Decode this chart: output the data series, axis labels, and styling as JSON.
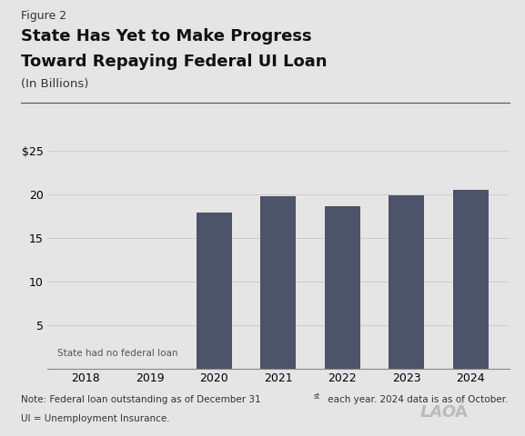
{
  "figure_label": "Figure 2",
  "title_line1": "State Has Yet to Make Progress",
  "title_line2": "Toward Repaying Federal UI Loan",
  "subtitle": "(In Billions)",
  "categories": [
    2018,
    2019,
    2020,
    2021,
    2022,
    2023,
    2024
  ],
  "values": [
    0,
    0,
    17.9,
    19.8,
    18.6,
    19.9,
    20.5
  ],
  "bar_color": "#4d5369",
  "ylim": [
    0,
    25
  ],
  "yticks": [
    0,
    5,
    10,
    15,
    20,
    25
  ],
  "ytick_labels": [
    "",
    "5",
    "10",
    "15",
    "20",
    "$25"
  ],
  "no_loan_text": "State had no federal loan",
  "note_line1_pre": "Note: Federal loan outstanding as of December 31",
  "note_superscript": "st",
  "note_line1_post": " each year. 2024 data is as of October.",
  "note_line2": "UI = Unemployment Insurance.",
  "background_color": "#e5e5e5",
  "bar_width": 0.55
}
